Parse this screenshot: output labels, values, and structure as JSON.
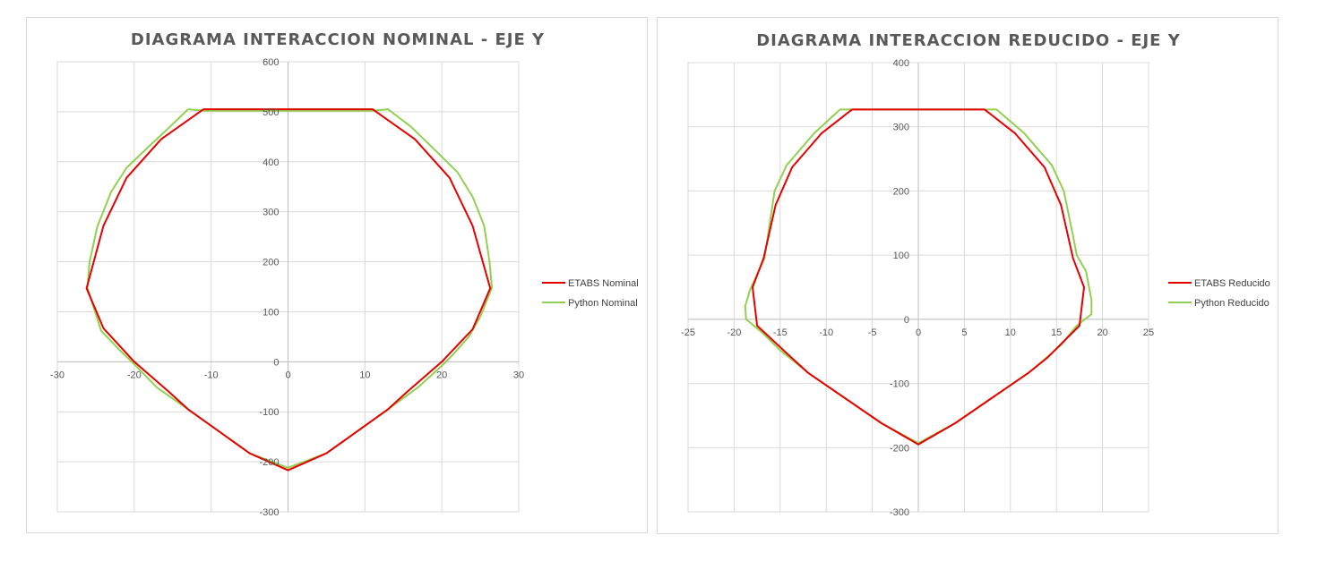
{
  "colors": {
    "etabs": "#e60000",
    "python": "#92d050"
  },
  "chart_data": [
    {
      "type": "scatter",
      "title": "DIAGRAMA INTERACCION NOMINAL - EJE Y",
      "xlabel": "",
      "ylabel": "",
      "xlim": [
        -30,
        30
      ],
      "ylim": [
        -300,
        600
      ],
      "x_ticks": [
        -30,
        -20,
        -10,
        0,
        10,
        20,
        30
      ],
      "y_ticks": [
        -300,
        -200,
        -100,
        0,
        100,
        200,
        300,
        400,
        500,
        600
      ],
      "grid": true,
      "legend": "right",
      "series": [
        {
          "name": "ETABS Nominal",
          "color": "#e60000",
          "points": [
            [
              -11,
              505
            ],
            [
              11,
              505
            ],
            [
              16.5,
              445
            ],
            [
              21,
              368
            ],
            [
              24,
              272
            ],
            [
              26.3,
              147
            ],
            [
              24,
              65
            ],
            [
              20,
              0
            ],
            [
              15.5,
              -60
            ],
            [
              13,
              -95
            ],
            [
              5,
              -183
            ],
            [
              0,
              -217
            ],
            [
              -5,
              -183
            ],
            [
              -13,
              -95
            ],
            [
              -15.5,
              -60
            ],
            [
              -20,
              0
            ],
            [
              -24,
              67
            ],
            [
              -26.2,
              147
            ],
            [
              -24,
              272
            ],
            [
              -21,
              368
            ],
            [
              -16.5,
              445
            ],
            [
              -11,
              505
            ]
          ]
        },
        {
          "name": "Python Nominal",
          "color": "#92d050",
          "points": [
            [
              -13,
              505
            ],
            [
              -11,
              502
            ],
            [
              11,
              502
            ],
            [
              13,
              505
            ],
            [
              16,
              470
            ],
            [
              19,
              425
            ],
            [
              22,
              380
            ],
            [
              24,
              330
            ],
            [
              25.5,
              272
            ],
            [
              26.2,
              200
            ],
            [
              26.5,
              148
            ],
            [
              25,
              90
            ],
            [
              23.5,
              50
            ],
            [
              21.5,
              15
            ],
            [
              20,
              -8
            ],
            [
              17,
              -50
            ],
            [
              13,
              -95
            ],
            [
              5,
              -183
            ],
            [
              0,
              -212
            ],
            [
              -5,
              -183
            ],
            [
              -13,
              -95
            ],
            [
              -17,
              -52
            ],
            [
              -20,
              -5
            ],
            [
              -22,
              25
            ],
            [
              -24.3,
              62
            ],
            [
              -26.1,
              148
            ],
            [
              -25.8,
              200
            ],
            [
              -24.8,
              270
            ],
            [
              -23,
              340
            ],
            [
              -21,
              388
            ],
            [
              -18,
              432
            ],
            [
              -15.5,
              468
            ],
            [
              -13,
              505
            ]
          ]
        }
      ]
    },
    {
      "type": "scatter",
      "title": "DIAGRAMA INTERACCION REDUCIDO - EJE Y",
      "xlabel": "",
      "ylabel": "",
      "xlim": [
        -25,
        25
      ],
      "ylim": [
        -300,
        400
      ],
      "x_ticks": [
        -25,
        -20,
        -15,
        -10,
        -5,
        0,
        5,
        10,
        15,
        20,
        25
      ],
      "y_ticks": [
        -300,
        -200,
        -100,
        0,
        100,
        200,
        300,
        400
      ],
      "grid": true,
      "legend": "right",
      "series": [
        {
          "name": "ETABS Reducido",
          "color": "#e60000",
          "points": [
            [
              -7.2,
              327
            ],
            [
              7.2,
              327
            ],
            [
              10.5,
              290
            ],
            [
              13.7,
              237
            ],
            [
              15.5,
              178
            ],
            [
              16.8,
              95
            ],
            [
              18,
              50
            ],
            [
              17.5,
              -10
            ],
            [
              14,
              -60
            ],
            [
              12,
              -83
            ],
            [
              4,
              -162
            ],
            [
              0,
              -195
            ],
            [
              -4,
              -162
            ],
            [
              -12,
              -83
            ],
            [
              -14.5,
              -50
            ],
            [
              -17.5,
              -10
            ],
            [
              -18,
              50
            ],
            [
              -16.8,
              95
            ],
            [
              -15.5,
              178
            ],
            [
              -13.7,
              237
            ],
            [
              -10.5,
              290
            ],
            [
              -7.2,
              327
            ]
          ]
        },
        {
          "name": "Python Reducido",
          "color": "#92d050",
          "points": [
            [
              -8.5,
              327
            ],
            [
              8.5,
              327
            ],
            [
              11.5,
              290
            ],
            [
              14.5,
              240
            ],
            [
              15.8,
              200
            ],
            [
              16.8,
              130
            ],
            [
              17.2,
              100
            ],
            [
              18.2,
              75
            ],
            [
              18.8,
              30
            ],
            [
              18.8,
              8
            ],
            [
              17.2,
              -10
            ],
            [
              15.5,
              -40
            ],
            [
              13.5,
              -65
            ],
            [
              12,
              -83
            ],
            [
              4,
              -162
            ],
            [
              0,
              -193
            ],
            [
              -4,
              -162
            ],
            [
              -12,
              -83
            ],
            [
              -15,
              -48
            ],
            [
              -17,
              -20
            ],
            [
              -18.7,
              0
            ],
            [
              -18.8,
              20
            ],
            [
              -18.3,
              45
            ],
            [
              -17.5,
              70
            ],
            [
              -16.7,
              95
            ],
            [
              -15.6,
              200
            ],
            [
              -14.3,
              240
            ],
            [
              -11.3,
              290
            ],
            [
              -8.5,
              327
            ]
          ]
        }
      ]
    }
  ]
}
